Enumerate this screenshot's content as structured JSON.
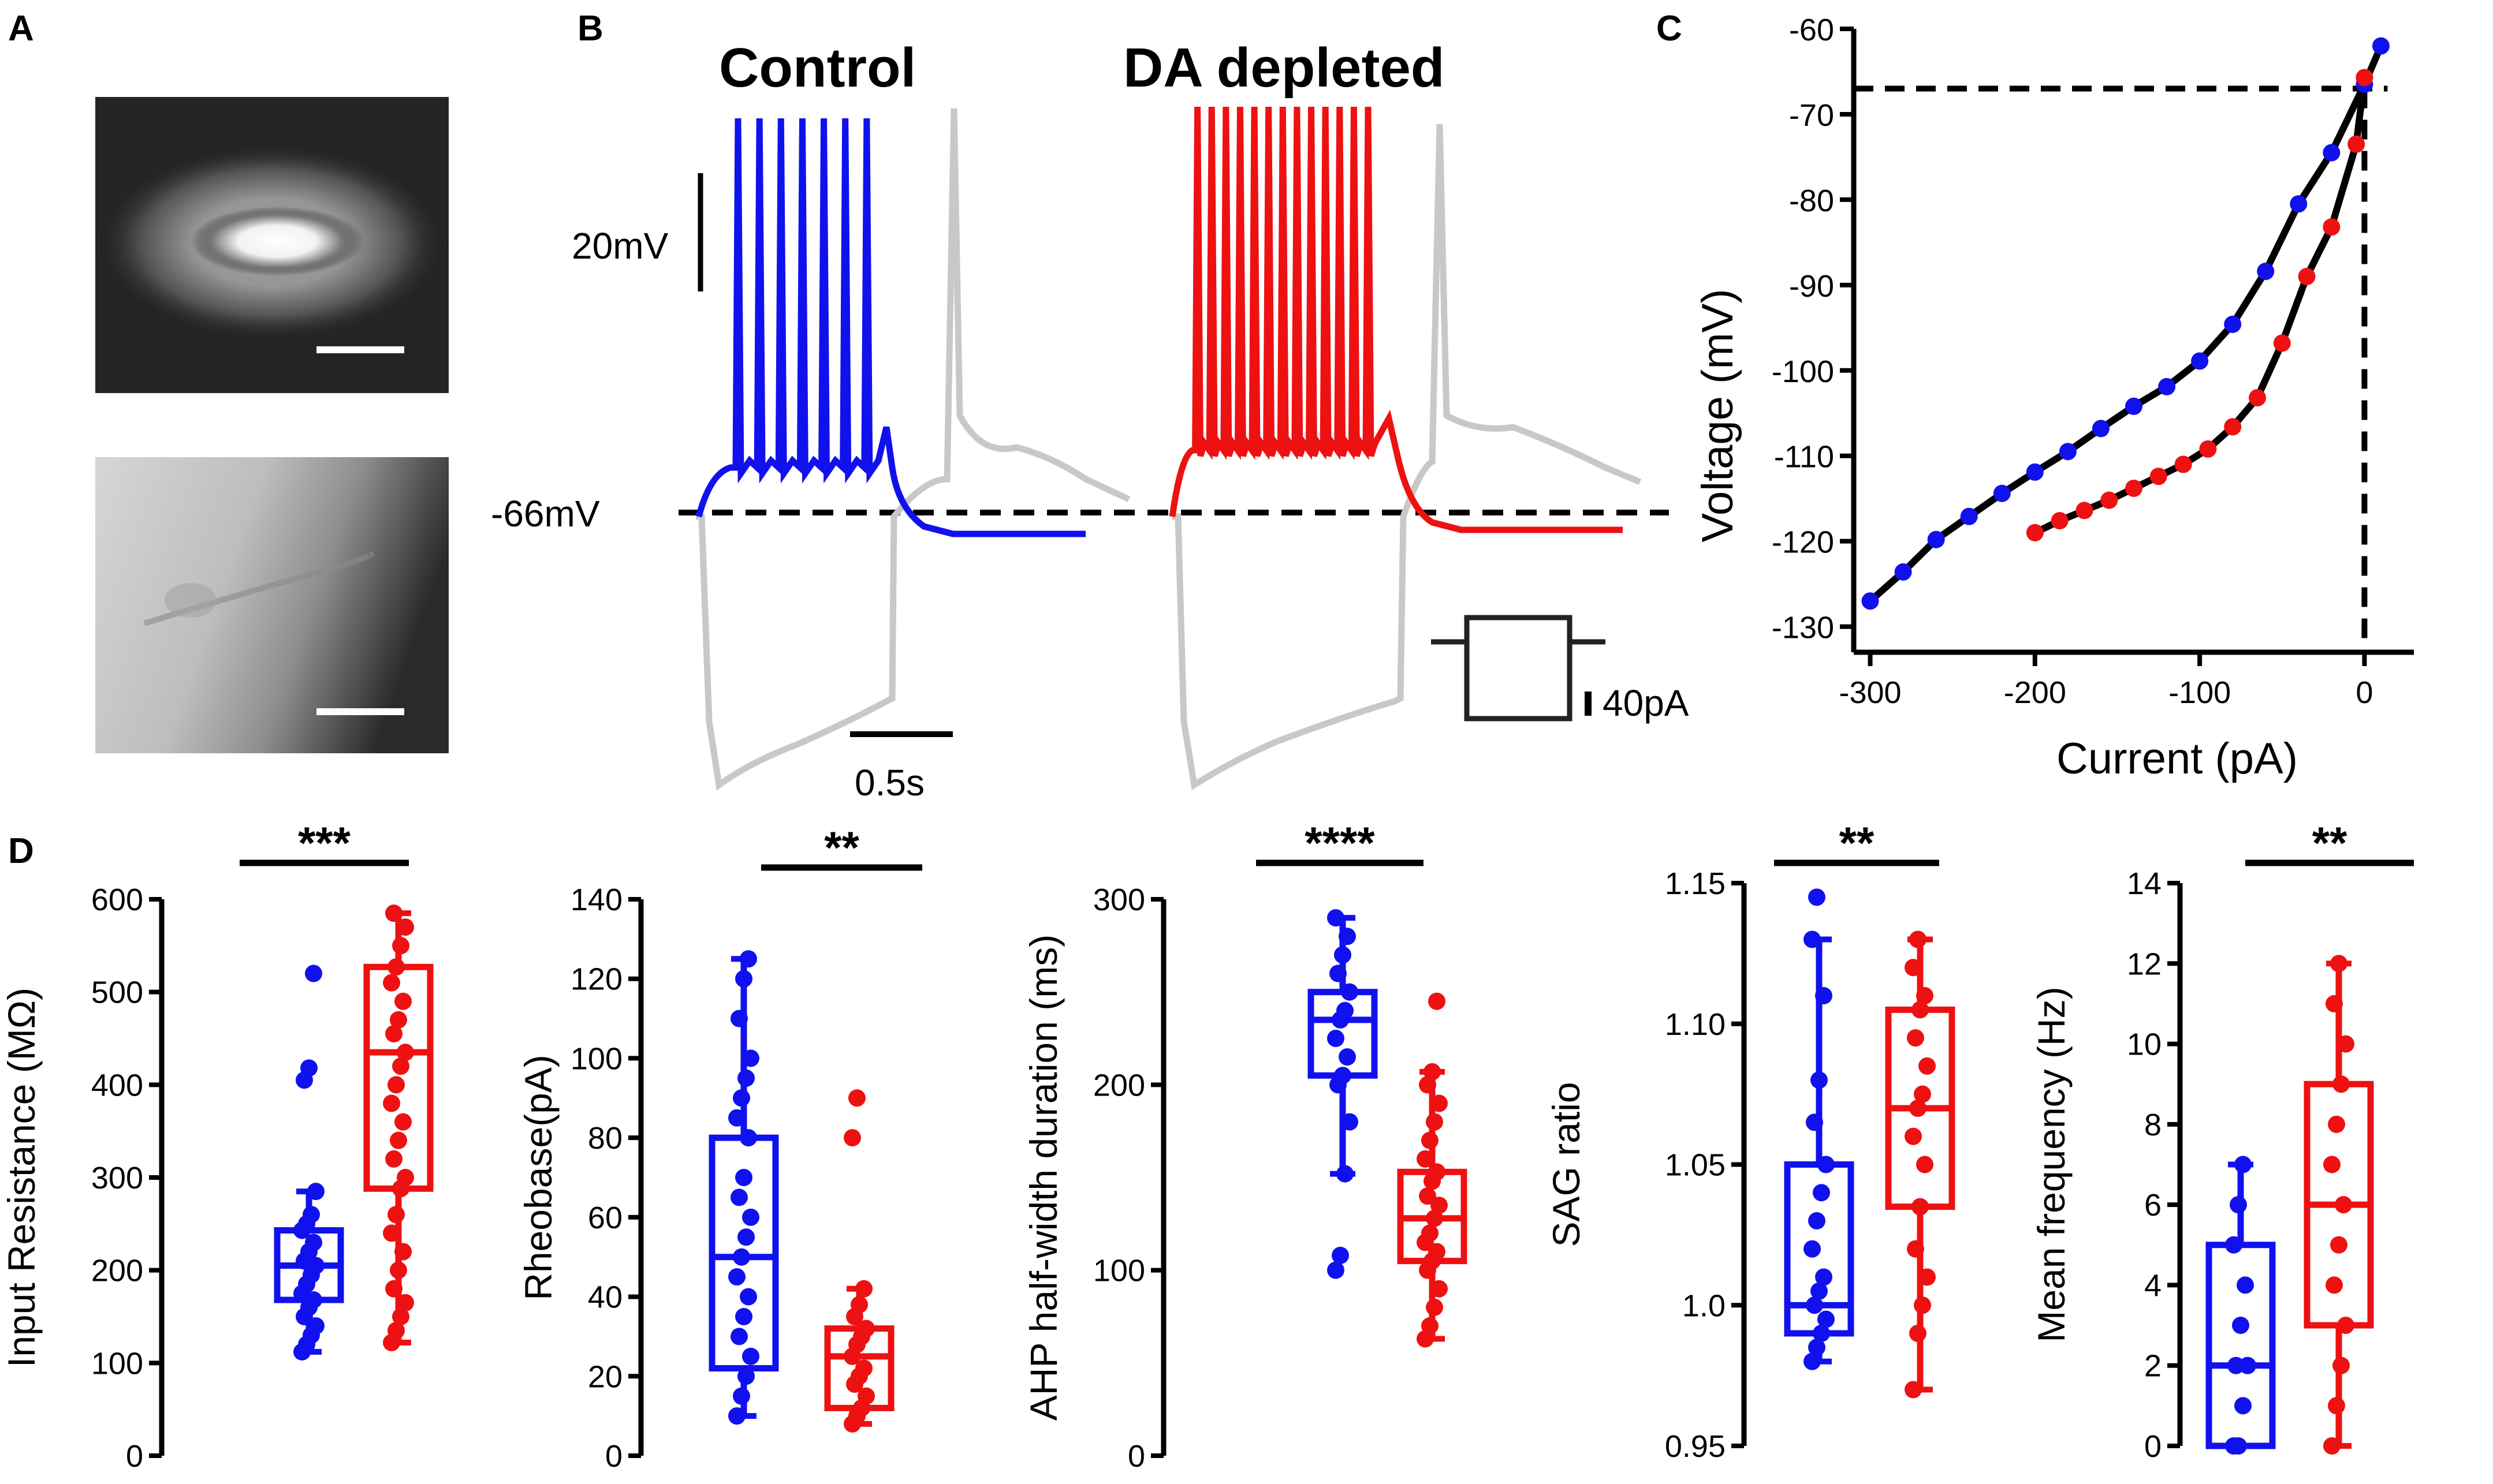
{
  "panels": {
    "a": "A",
    "b": "B",
    "c": "C",
    "d": "D"
  },
  "panel_b": {
    "control_title": "Control",
    "da_title": "DA depleted",
    "voltage_scale": "20mV",
    "time_scale": "0.5s",
    "current_scale": "40pA",
    "baseline": "-66mV"
  },
  "colors": {
    "control": "#1111ee",
    "da_depleted": "#ee1111",
    "trace_grey": "#c8c8c8",
    "axis": "#000000"
  },
  "chart_data": [
    {
      "id": "iv_curve",
      "type": "scatter",
      "title": "",
      "xlabel": "Current (pA)",
      "ylabel": "Voltage (mV)",
      "xlim": [
        -310,
        30
      ],
      "ylim": [
        -133,
        -60
      ],
      "xticks": [
        -300,
        -200,
        -100,
        0
      ],
      "yticks": [
        -60,
        -70,
        -80,
        -90,
        -100,
        -110,
        -120,
        -130
      ],
      "reference_lines": {
        "x": 0,
        "y": -67
      },
      "series": [
        {
          "name": "Control",
          "color": "#1111ee",
          "x": [
            -300,
            -280,
            -260,
            -240,
            -220,
            -200,
            -180,
            -160,
            -140,
            -120,
            -100,
            -80,
            -60,
            -40,
            -20,
            0,
            10
          ],
          "y": [
            -127,
            -123.6,
            -119.8,
            -117.1,
            -114.4,
            -111.9,
            -109.5,
            -106.8,
            -104.2,
            -101.9,
            -98.9,
            -94.6,
            -88.4,
            -80.5,
            -74.5,
            -66.5,
            -62
          ]
        },
        {
          "name": "DA depleted",
          "color": "#ee1111",
          "x": [
            -200,
            -185,
            -170,
            -155,
            -140,
            -125,
            -110,
            -95,
            -80,
            -65,
            -50,
            -35,
            -20,
            -5,
            0
          ],
          "y": [
            -119,
            -117.6,
            -116.4,
            -115.2,
            -113.8,
            -112.4,
            -111,
            -109.2,
            -106.6,
            -103.2,
            -96.8,
            -89,
            -83.2,
            -73.5,
            -65.7
          ]
        }
      ]
    },
    {
      "id": "input_resistance",
      "type": "box",
      "significance": "***",
      "ylabel": "Input Resistance (MΩ)",
      "ylim": [
        0,
        600
      ],
      "yticks": [
        0,
        100,
        200,
        300,
        400,
        500,
        600
      ],
      "series": [
        {
          "name": "Control",
          "color": "#1111ee",
          "whisker_low": 112,
          "q1": 168,
          "median": 205,
          "q3": 243,
          "whisker_high": 285,
          "points": [
            112,
            120,
            130,
            140,
            150,
            160,
            168,
            175,
            185,
            195,
            205,
            210,
            220,
            230,
            243,
            250,
            260,
            285,
            405,
            418,
            520
          ]
        },
        {
          "name": "DA depleted",
          "color": "#ee1111",
          "whisker_low": 122,
          "q1": 288,
          "median": 435,
          "q3": 527,
          "whisker_high": 585,
          "points": [
            122,
            135,
            150,
            165,
            180,
            200,
            220,
            240,
            260,
            288,
            300,
            320,
            340,
            360,
            380,
            400,
            420,
            435,
            455,
            470,
            490,
            510,
            527,
            550,
            570,
            585
          ]
        }
      ]
    },
    {
      "id": "rheobase",
      "type": "box",
      "significance": "**",
      "ylabel": "Rheobase(pA)",
      "ylim": [
        0,
        140
      ],
      "yticks": [
        0,
        20,
        40,
        60,
        80,
        100,
        120,
        140
      ],
      "series": [
        {
          "name": "Control",
          "color": "#1111ee",
          "whisker_low": 10,
          "q1": 22,
          "median": 50,
          "q3": 80,
          "whisker_high": 125,
          "points": [
            10,
            15,
            20,
            25,
            30,
            35,
            40,
            45,
            50,
            55,
            60,
            65,
            70,
            80,
            85,
            90,
            95,
            100,
            110,
            120,
            125
          ]
        },
        {
          "name": "DA depleted",
          "color": "#ee1111",
          "whisker_low": 8,
          "q1": 12,
          "median": 25,
          "q3": 32,
          "whisker_high": 42,
          "points": [
            8,
            10,
            12,
            15,
            18,
            20,
            22,
            25,
            28,
            30,
            32,
            35,
            38,
            42,
            80,
            90
          ]
        }
      ]
    },
    {
      "id": "ahp_half_width",
      "type": "box",
      "significance": "****",
      "ylabel": "AHP half-width duration (ms)",
      "ylim": [
        0,
        300
      ],
      "yticks": [
        0,
        100,
        200,
        300
      ],
      "series": [
        {
          "name": "Control",
          "color": "#1111ee",
          "whisker_low": 152,
          "q1": 205,
          "median": 235,
          "q3": 250,
          "whisker_high": 290,
          "points": [
            100,
            108,
            152,
            180,
            200,
            205,
            215,
            225,
            235,
            240,
            250,
            260,
            270,
            280,
            290
          ]
        },
        {
          "name": "DA depleted",
          "color": "#ee1111",
          "whisker_low": 63,
          "q1": 105,
          "median": 128,
          "q3": 153,
          "whisker_high": 207,
          "points": [
            63,
            70,
            80,
            90,
            100,
            105,
            110,
            115,
            120,
            128,
            135,
            140,
            148,
            153,
            160,
            170,
            180,
            190,
            200,
            207,
            245
          ]
        }
      ]
    },
    {
      "id": "sag_ratio",
      "type": "box",
      "significance": "**",
      "ylabel": "SAG ratio",
      "ylim": [
        0.95,
        1.15
      ],
      "yticks": [
        0.95,
        1.0,
        1.05,
        1.1,
        1.15
      ],
      "ytick_labels": [
        "0.95",
        "1.0",
        "1.05",
        "1.10",
        "1.15"
      ],
      "series": [
        {
          "name": "Control",
          "color": "#1111ee",
          "whisker_low": 0.98,
          "q1": 0.99,
          "median": 1.0,
          "q3": 1.05,
          "whisker_high": 1.13,
          "points": [
            0.98,
            0.985,
            0.99,
            0.995,
            1.0,
            1.005,
            1.01,
            1.02,
            1.03,
            1.04,
            1.05,
            1.065,
            1.08,
            1.11,
            1.13,
            1.145
          ]
        },
        {
          "name": "DA depleted",
          "color": "#ee1111",
          "whisker_low": 0.97,
          "q1": 1.035,
          "median": 1.07,
          "q3": 1.105,
          "whisker_high": 1.13,
          "points": [
            0.97,
            0.99,
            1.0,
            1.01,
            1.02,
            1.035,
            1.05,
            1.06,
            1.07,
            1.075,
            1.085,
            1.095,
            1.105,
            1.11,
            1.12,
            1.13
          ]
        }
      ]
    },
    {
      "id": "mean_frequency",
      "type": "box",
      "significance": "**",
      "ylabel": "Mean frequency (Hz)",
      "ylim": [
        0,
        14
      ],
      "yticks": [
        0,
        2,
        4,
        6,
        8,
        10,
        12,
        14
      ],
      "series": [
        {
          "name": "Control",
          "color": "#1111ee",
          "whisker_low": 0,
          "q1": 0,
          "median": 2,
          "q3": 5,
          "whisker_high": 7,
          "points": [
            0,
            0,
            1,
            2,
            2,
            3,
            4,
            5,
            6,
            7
          ]
        },
        {
          "name": "DA depleted",
          "color": "#ee1111",
          "whisker_low": 0,
          "q1": 3,
          "median": 6,
          "q3": 9,
          "whisker_high": 12,
          "points": [
            0,
            1,
            2,
            3,
            4,
            5,
            6,
            7,
            8,
            9,
            10,
            11,
            12
          ]
        }
      ]
    }
  ]
}
